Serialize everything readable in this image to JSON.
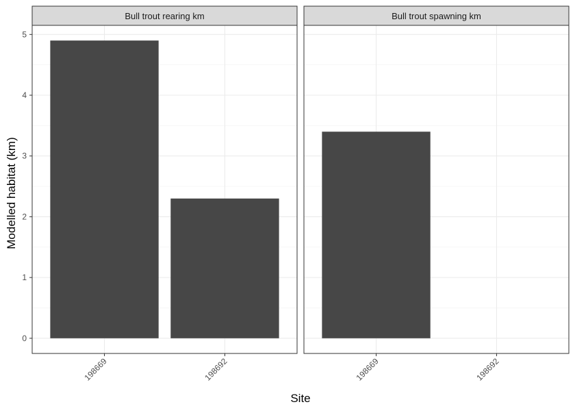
{
  "chart_data": {
    "type": "bar",
    "xlabel": "Site",
    "ylabel": "Modelled habitat (km)",
    "ylim": [
      -0.25,
      5.15
    ],
    "yticks": [
      0,
      1,
      2,
      3,
      4,
      5
    ],
    "categories": [
      "198669",
      "198692"
    ],
    "panels": [
      {
        "title": "Bull trout rearing km",
        "values": [
          4.9,
          2.3
        ]
      },
      {
        "title": "Bull trout spawning km",
        "values": [
          3.4,
          null
        ]
      }
    ],
    "bar_color": "#474747",
    "strip_color": "#d9d9d9",
    "grid": true
  }
}
